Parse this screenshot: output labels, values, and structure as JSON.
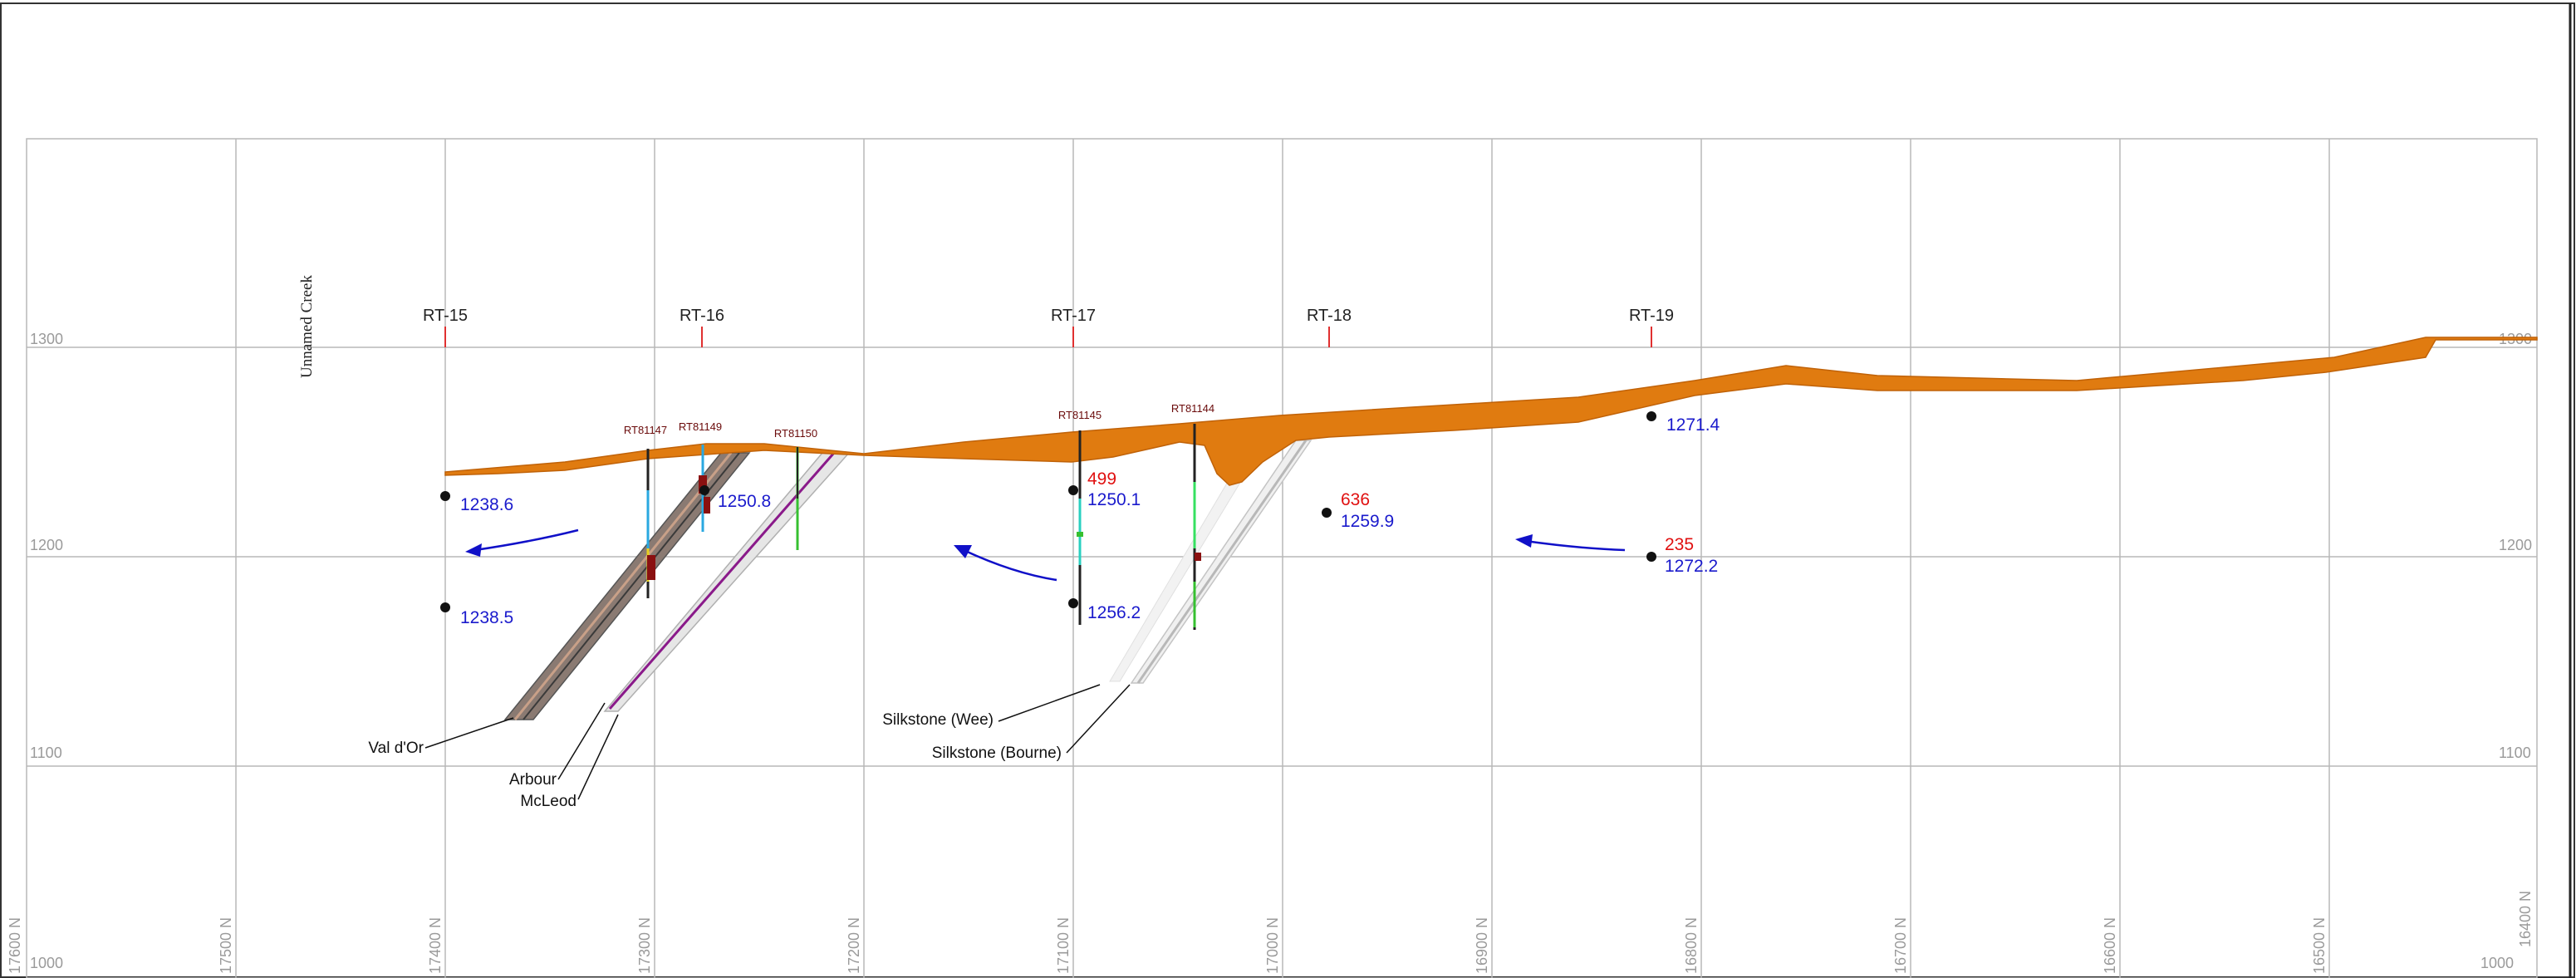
{
  "section": {
    "elev_labels": [
      "1300",
      "1200",
      "1100",
      "1000"
    ],
    "northing_labels": [
      "17600 N",
      "17500 N",
      "17400 N",
      "17300 N",
      "17200 N",
      "17100 N",
      "17000 N",
      "16900 N",
      "16800 N",
      "16700 N",
      "16600 N",
      "16500 N",
      "16400 N"
    ],
    "creek_label": "Unnamed Creek",
    "rt_markers": [
      "RT-15",
      "RT-16",
      "RT-17",
      "RT-18",
      "RT-19"
    ],
    "drillholes": [
      "RT81147",
      "RT81149",
      "RT81150",
      "RT81145",
      "RT81144"
    ],
    "blue_values": [
      "1238.6",
      "1238.5",
      "1250.8",
      "1250.1",
      "1256.2",
      "1259.9",
      "1271.4",
      "1272.2"
    ],
    "red_values": [
      "499",
      "636",
      "235"
    ],
    "units": [
      "Val d'Or",
      "Arbour",
      "McLeod",
      "Silkstone (Wee)",
      "Silkstone (Bourne)"
    ]
  },
  "colors": {
    "overburden": "#e07b10",
    "blue_text": "#1a1acc",
    "red_text": "#e01010",
    "grid": "#b8b8b8",
    "arrow": "#1010c8"
  }
}
